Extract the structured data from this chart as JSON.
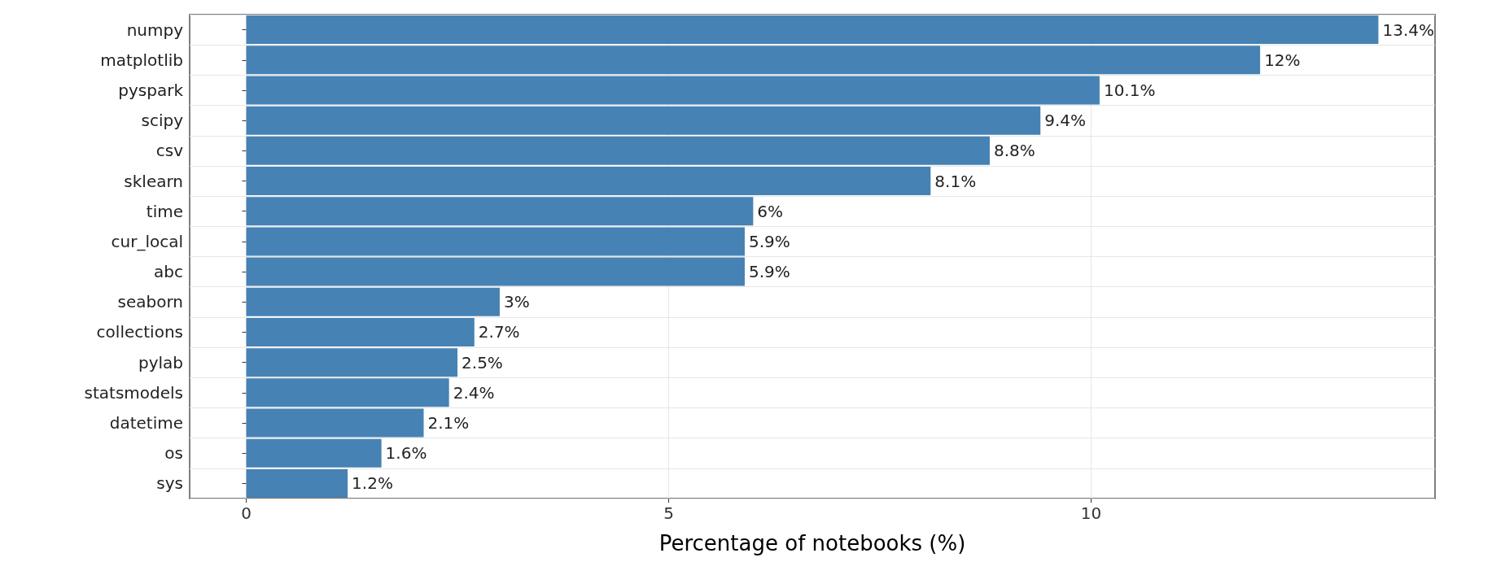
{
  "chart_data": {
    "type": "bar",
    "orientation": "horizontal",
    "xlabel": "Percentage of notebooks (%)",
    "categories": [
      "numpy",
      "matplotlib",
      "pyspark",
      "scipy",
      "csv",
      "sklearn",
      "time",
      "cur_local",
      "abc",
      "seaborn",
      "collections",
      "pylab",
      "statsmodels",
      "datetime",
      "os",
      "sys"
    ],
    "values": [
      13.4,
      12,
      10.1,
      9.4,
      8.8,
      8.1,
      6,
      5.9,
      5.9,
      3,
      2.7,
      2.5,
      2.4,
      2.1,
      1.6,
      1.2
    ],
    "value_labels": [
      "13.4%",
      "12%",
      "10.1%",
      "9.4%",
      "8.8%",
      "8.1%",
      "6%",
      "5.9%",
      "5.9%",
      "3%",
      "2.7%",
      "2.5%",
      "2.4%",
      "2.1%",
      "1.6%",
      "1.2%"
    ],
    "color": "#4682b4",
    "xlim": [
      -0.67,
      14.07
    ],
    "xticks": [
      0,
      5,
      10
    ],
    "grid": true
  }
}
